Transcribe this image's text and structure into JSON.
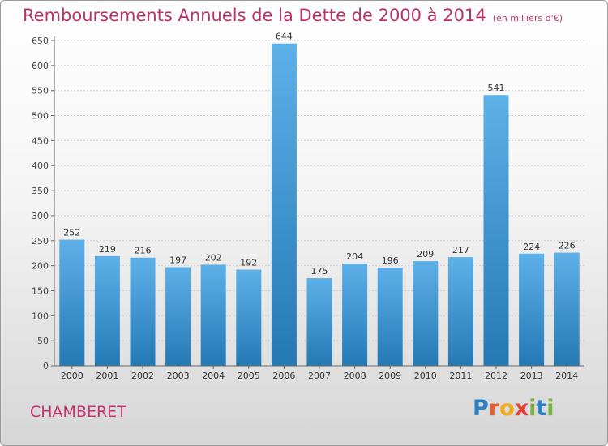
{
  "header": {
    "title": "Remboursements Annuels de la Dette de 2000 à 2014",
    "unit": "(en milliers d'€)"
  },
  "footer": {
    "commune": "CHAMBERET",
    "logo_letters": [
      "P",
      "r",
      "o",
      "x",
      "i",
      "t",
      "i"
    ]
  },
  "colors": {
    "title": "#b8336a",
    "bar_light": "#5eb0e8",
    "bar_dark": "#2479b5",
    "logo": [
      "#2a7fc2",
      "#e85b2a",
      "#f2a91a",
      "#e0413a",
      "#7cb342",
      "#2a7fc2",
      "#7cb342"
    ]
  },
  "chart_data": {
    "type": "bar",
    "categories": [
      "2000",
      "2001",
      "2002",
      "2003",
      "2004",
      "2005",
      "2006",
      "2007",
      "2008",
      "2009",
      "2010",
      "2011",
      "2012",
      "2013",
      "2014"
    ],
    "values": [
      252,
      219,
      216,
      197,
      202,
      192,
      644,
      175,
      204,
      196,
      209,
      217,
      541,
      224,
      226
    ],
    "ylim": [
      0,
      650
    ],
    "yticks": [
      0,
      50,
      100,
      150,
      200,
      250,
      300,
      350,
      400,
      450,
      500,
      550,
      600,
      650
    ],
    "grid": true,
    "data_labels": true
  }
}
